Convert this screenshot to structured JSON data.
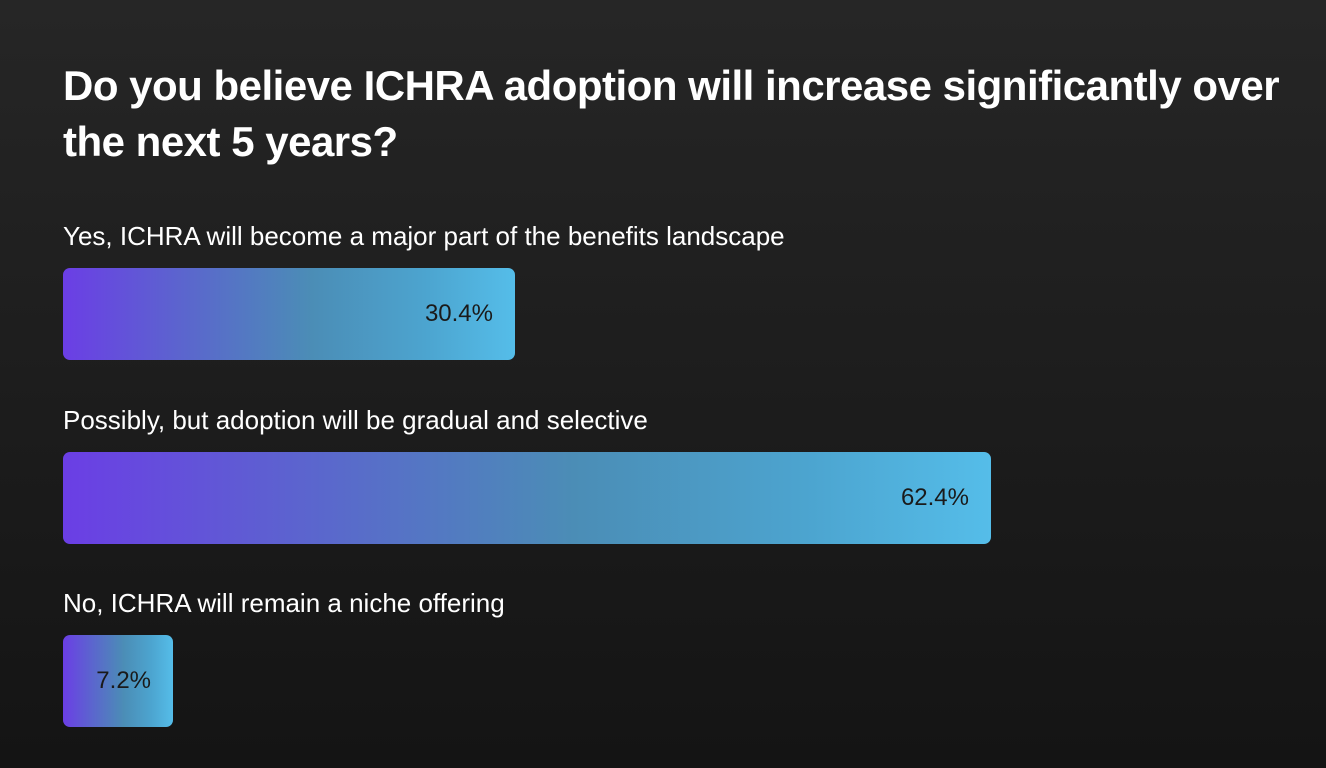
{
  "chart_data": {
    "type": "bar",
    "orientation": "horizontal",
    "title": "Do you believe ICHRA adoption will increase significantly over the next 5 years?",
    "categories": [
      "Yes, ICHRA will become a major part of the benefits landscape",
      "Possibly, but adoption will be gradual and selective",
      "No, ICHRA will remain a niche offering"
    ],
    "values": [
      30.4,
      62.4,
      7.2
    ],
    "value_labels": [
      "30.4%",
      "62.4%",
      "7.2%"
    ],
    "unit": "%",
    "xlim": [
      0,
      82
    ],
    "xlabel": "",
    "ylabel": "",
    "grid": false
  },
  "colors": {
    "bar_gradient_start": "#6b3ee5",
    "bar_gradient_end": "#55bde9",
    "value_text": "#1a1a1a",
    "background": "#1c1c1c"
  }
}
